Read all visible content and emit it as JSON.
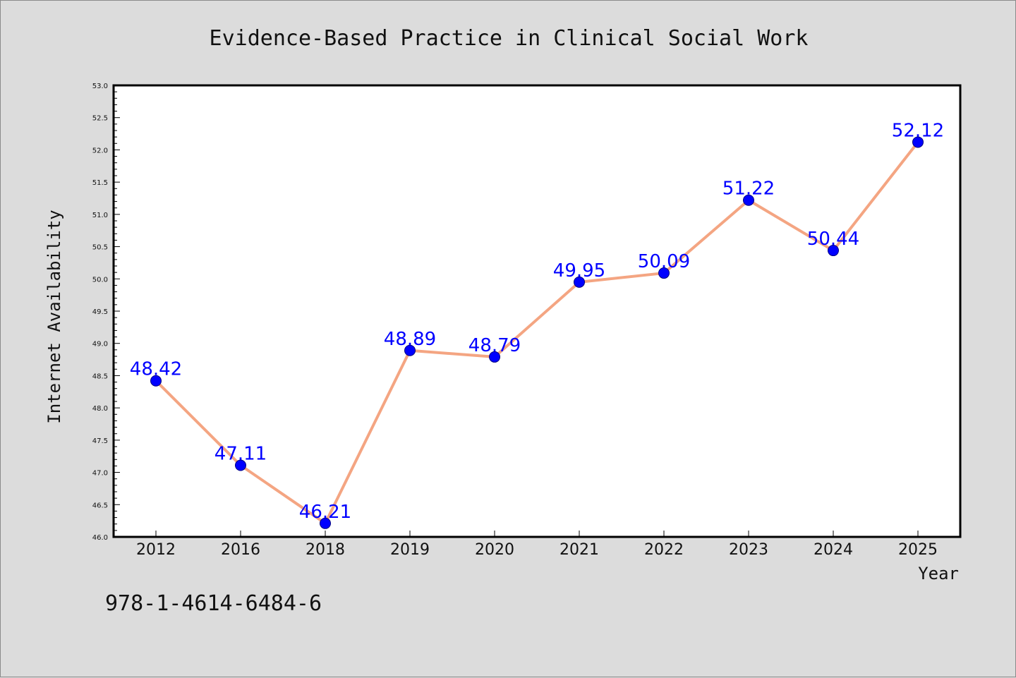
{
  "chart_data": {
    "type": "line",
    "title": "Evidence-Based Practice in Clinical Social Work",
    "xlabel": "Year",
    "ylabel": "Internet Availability",
    "categories": [
      "2012",
      "2016",
      "2018",
      "2019",
      "2020",
      "2021",
      "2022",
      "2023",
      "2024",
      "2025"
    ],
    "series": [
      {
        "values": [
          48.42,
          47.11,
          46.21,
          48.89,
          48.79,
          49.95,
          50.09,
          51.22,
          50.44,
          52.12
        ],
        "labels": [
          "48.42",
          "47.11",
          "46.21",
          "48.89",
          "48.79",
          "49.95",
          "50.09",
          "51.22",
          "50.44",
          "52.12"
        ]
      }
    ],
    "ylim": [
      46.0,
      53.0
    ],
    "yticks": [
      "46.0",
      "46.5",
      "47.0",
      "47.5",
      "48.0",
      "48.5",
      "49.0",
      "49.5",
      "50.0",
      "50.5",
      "51.0",
      "51.5",
      "52.0",
      "52.5",
      "53.0"
    ],
    "grid": false,
    "legend": "none",
    "colors": {
      "line": "#f4a582",
      "marker_fill": "#0000ff",
      "marker_edge": "#000080",
      "data_label": "#0000ff",
      "plot_bg": "#ffffff",
      "figure_bg": "#dcdcdc"
    }
  },
  "annotation": {
    "text": "978-1-4614-6484-6"
  }
}
